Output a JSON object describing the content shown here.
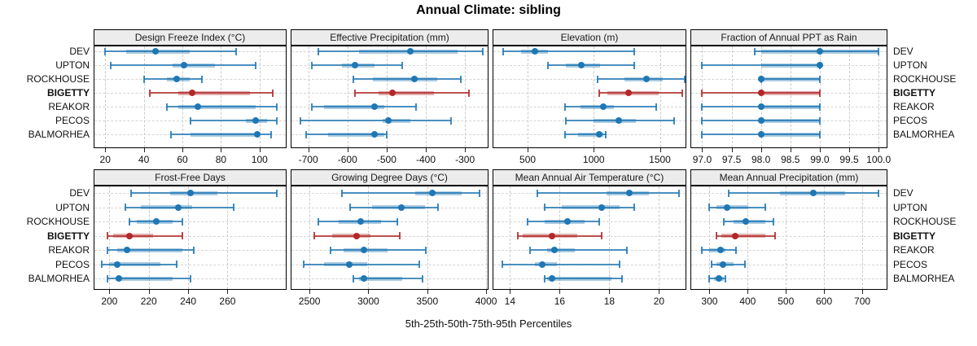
{
  "title": "Annual Climate: sibling",
  "caption": "5th-25th-50th-75th-95th Percentiles",
  "sites": [
    "DEV",
    "UPTON",
    "ROCKHOUSE",
    "BIGETTY",
    "REAKOR",
    "PECOS",
    "BALMORHEA"
  ],
  "highlight_site": "BIGETTY",
  "percentile_levels": [
    5,
    25,
    50,
    75,
    95
  ],
  "colors": {
    "series": "#1f77b4",
    "highlight": "#b22828",
    "grid": "#c9c9c9",
    "strip_bg": "#ececec",
    "border": "#000000"
  },
  "chart_data": [
    {
      "type": "dotplot",
      "title": "Design Freeze Index (°C)",
      "xlim": [
        14,
        114
      ],
      "tick_labels": [
        "20",
        "40",
        "60",
        "80",
        "100"
      ],
      "tick_values": [
        20,
        40,
        60,
        80,
        100
      ],
      "values": [
        [
          20,
          31,
          46,
          64,
          88
        ],
        [
          23,
          55,
          61,
          77,
          98
        ],
        [
          40,
          52,
          57,
          64,
          70
        ],
        [
          43,
          58,
          65,
          95,
          107
        ],
        [
          52,
          58,
          68,
          98,
          109
        ],
        [
          64,
          93,
          98,
          104,
          109
        ],
        [
          54,
          64,
          99,
          100,
          106
        ]
      ]
    },
    {
      "type": "dotplot",
      "title": "Effective Precipitation (mm)",
      "xlim": [
        -745,
        -240
      ],
      "tick_labels": [
        "-700",
        "-600",
        "-500",
        "-400",
        "-300"
      ],
      "tick_values": [
        -700,
        -600,
        -500,
        -400,
        -300
      ],
      "values": [
        [
          -675,
          -570,
          -440,
          -320,
          -255
        ],
        [
          -690,
          -615,
          -580,
          -530,
          -460
        ],
        [
          -585,
          -535,
          -430,
          -370,
          -310
        ],
        [
          -580,
          -520,
          -485,
          -380,
          -290
        ],
        [
          -690,
          -660,
          -530,
          -505,
          -425
        ],
        [
          -720,
          -510,
          -495,
          -440,
          -335
        ],
        [
          -705,
          -650,
          -530,
          -505,
          -500
        ]
      ]
    },
    {
      "type": "dotplot",
      "title": "Elevation (m)",
      "xlim": [
        235,
        1700
      ],
      "tick_labels": [
        "500",
        "1000",
        "1500"
      ],
      "tick_values": [
        500,
        1000,
        1500
      ],
      "values": [
        [
          317,
          451,
          555,
          652,
          1305
        ],
        [
          652,
          786,
          908,
          1049,
          1305
        ],
        [
          1030,
          1230,
          1400,
          1520,
          1690
        ],
        [
          1040,
          1100,
          1260,
          1490,
          1670
        ],
        [
          780,
          900,
          1070,
          1150,
          1470
        ],
        [
          790,
          1000,
          1190,
          1320,
          1610
        ],
        [
          780,
          880,
          1040,
          1070,
          1090
        ]
      ]
    },
    {
      "type": "dotplot",
      "title": "Fraction of Annual PPT as Rain",
      "xlim": [
        96.8,
        100.15
      ],
      "tick_labels": [
        "97.0",
        "97.5",
        "98.0",
        "98.5",
        "99.0",
        "99.5",
        "100.0"
      ],
      "tick_values": [
        97.0,
        97.5,
        98.0,
        98.5,
        99.0,
        99.5,
        100.0
      ],
      "values": [
        [
          97.9,
          98,
          99,
          100,
          100
        ],
        [
          97,
          98,
          99,
          99,
          99
        ],
        [
          98,
          98,
          98,
          99,
          99
        ],
        [
          97,
          98,
          98,
          99,
          99
        ],
        [
          97,
          98,
          98,
          99,
          99
        ],
        [
          97,
          98,
          98,
          99,
          99
        ],
        [
          97,
          98,
          98,
          99,
          99
        ]
      ]
    },
    {
      "type": "dotplot",
      "title": "Frost-Free Days",
      "xlim": [
        192,
        290
      ],
      "tick_labels": [
        "200",
        "220",
        "240",
        "260"
      ],
      "tick_values": [
        200,
        220,
        240,
        260
      ],
      "values": [
        [
          211,
          231,
          241,
          255,
          285
        ],
        [
          208,
          216,
          235,
          242,
          263
        ],
        [
          210,
          214,
          224,
          232,
          237
        ],
        [
          199,
          202,
          210,
          222,
          237
        ],
        [
          199,
          204,
          209,
          237,
          243
        ],
        [
          196,
          200,
          204,
          226,
          234
        ],
        [
          199,
          203,
          205,
          232,
          241
        ]
      ]
    },
    {
      "type": "dotplot",
      "title": "Growing Degree Days (°C)",
      "xlim": [
        2340,
        4020
      ],
      "tick_labels": [
        "2500",
        "3000",
        "3500",
        "4000"
      ],
      "tick_values": [
        2500,
        3000,
        3500,
        4000
      ],
      "values": [
        [
          2776,
          3400,
          3540,
          3790,
          3945
        ],
        [
          2845,
          3030,
          3280,
          3480,
          3590
        ],
        [
          2576,
          2750,
          2934,
          3107,
          3245
        ],
        [
          2540,
          2690,
          2900,
          3020,
          3266
        ],
        [
          2680,
          2790,
          2960,
          3160,
          3490
        ],
        [
          2450,
          2620,
          2840,
          2990,
          3430
        ],
        [
          2870,
          2920,
          2960,
          3290,
          3460
        ]
      ]
    },
    {
      "type": "dotplot",
      "title": "Mean Annual Air Temperature (°C)",
      "xlim": [
        13.3,
        21.1
      ],
      "tick_labels": [
        "14",
        "16",
        "18",
        "20"
      ],
      "tick_values": [
        14,
        16,
        18,
        20
      ],
      "values": [
        [
          15.1,
          17.9,
          18.8,
          19.6,
          20.8
        ],
        [
          15.4,
          16.1,
          17.7,
          18.4,
          19.0
        ],
        [
          14.7,
          15.4,
          16.3,
          17.0,
          17.6
        ],
        [
          14.3,
          14.5,
          15.7,
          16.7,
          17.7
        ],
        [
          14.8,
          15.5,
          15.8,
          16.6,
          18.7
        ],
        [
          13.7,
          15.0,
          15.3,
          15.9,
          18.4
        ],
        [
          15.4,
          15.5,
          15.7,
          18.1,
          18.5
        ]
      ]
    },
    {
      "type": "dotplot",
      "title": "Mean Annual Precipitation (mm)",
      "xlim": [
        250,
        766
      ],
      "tick_labels": [
        "300",
        "400",
        "500",
        "600",
        "700"
      ],
      "tick_values": [
        300,
        400,
        500,
        600,
        700
      ],
      "values": [
        [
          350,
          485,
          572,
          655,
          743
        ],
        [
          300,
          318,
          346,
          402,
          447
        ],
        [
          338,
          362,
          396,
          447,
          468
        ],
        [
          319,
          332,
          368,
          447,
          472
        ],
        [
          280,
          300,
          328,
          342,
          370
        ],
        [
          305,
          318,
          335,
          362,
          392
        ],
        [
          300,
          312,
          325,
          337,
          342
        ]
      ]
    }
  ]
}
